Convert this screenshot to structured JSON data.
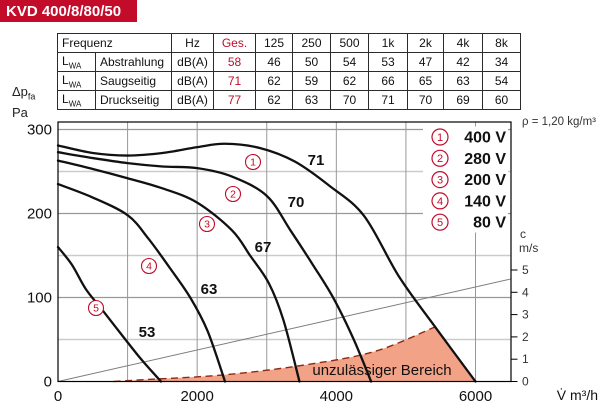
{
  "title": "KVD 400/8/80/50",
  "colors": {
    "accent_red": "#c30b2a",
    "region_fill": "#f2a387",
    "region_dash": "#8d2a12",
    "curve": "#111111",
    "grid_major": "#989898",
    "grid_minor": "#cbcbcb",
    "velocity_line": "#7d7d7d"
  },
  "table": {
    "header": {
      "frequency": "Frequenz",
      "hz": "Hz",
      "total": "Ges.",
      "bands": [
        "125",
        "250",
        "500",
        "1k",
        "2k",
        "4k",
        "8k"
      ]
    },
    "rows": [
      {
        "symbol": "L",
        "symbol_sub": "WA",
        "name": "Abstrahlung",
        "unit": "dB(A)",
        "total": "58",
        "values": [
          "46",
          "50",
          "54",
          "53",
          "47",
          "42",
          "34"
        ]
      },
      {
        "symbol": "L",
        "symbol_sub": "WA",
        "name": "Saugseitig",
        "unit": "dB(A)",
        "total": "71",
        "values": [
          "62",
          "59",
          "62",
          "66",
          "65",
          "63",
          "54"
        ]
      },
      {
        "symbol": "L",
        "symbol_sub": "WA",
        "name": "Druckseitig",
        "unit": "dB(A)",
        "total": "77",
        "values": [
          "62",
          "63",
          "70",
          "71",
          "70",
          "69",
          "60"
        ]
      }
    ]
  },
  "y_axis": {
    "label_main": "Δp",
    "label_sub": "fa",
    "label_unit": "Pa",
    "ticks": [
      "300",
      "200",
      "100",
      "0"
    ],
    "tick_values": [
      300,
      200,
      100,
      0
    ]
  },
  "x_axis": {
    "label": "V̇ m³/h",
    "ticks": [
      "0",
      "2000",
      "4000",
      "6000"
    ],
    "tick_values": [
      0,
      2000,
      4000,
      6000
    ]
  },
  "c_axis": {
    "name": "c",
    "unit": "m/s",
    "tick_values": [
      0,
      1,
      2,
      3,
      4,
      5
    ]
  },
  "rho_note": "ρ = 1,20 kg/m³",
  "chart_data": {
    "type": "line",
    "xlabel": "V̇ m³/h",
    "ylabel": "Δp_fa Pa",
    "y2label": "c m/s",
    "xlim": [
      0,
      6550
    ],
    "ylim": [
      0,
      308
    ],
    "y2lim": [
      0,
      5.1
    ],
    "x_grid_step_m3h": 1000,
    "y_major_grid": [
      100,
      200,
      300
    ],
    "y_minor_grid": [
      50,
      150,
      250
    ],
    "legend_position": "top-right-inside",
    "series": [
      {
        "number": "1",
        "voltage": "400 V",
        "sound_power": "71",
        "points": [
          [
            0,
            281
          ],
          [
            500,
            272
          ],
          [
            1000,
            269
          ],
          [
            1500,
            272
          ],
          [
            2000,
            279
          ],
          [
            2400,
            283
          ],
          [
            2900,
            278
          ],
          [
            3400,
            262
          ],
          [
            3900,
            233
          ],
          [
            4400,
            197
          ],
          [
            4900,
            125
          ],
          [
            5420,
            65
          ],
          [
            6000,
            0
          ]
        ]
      },
      {
        "number": "2",
        "voltage": "280 V",
        "sound_power": "70",
        "points": [
          [
            0,
            273
          ],
          [
            500,
            266
          ],
          [
            1000,
            260
          ],
          [
            1500,
            256
          ],
          [
            2000,
            254
          ],
          [
            2500,
            244
          ],
          [
            3000,
            221
          ],
          [
            3340,
            180
          ],
          [
            3670,
            138
          ],
          [
            3960,
            99
          ],
          [
            4250,
            50
          ],
          [
            4500,
            0
          ]
        ]
      },
      {
        "number": "3",
        "voltage": "200 V",
        "sound_power": "67",
        "points": [
          [
            0,
            263
          ],
          [
            500,
            253
          ],
          [
            1000,
            242
          ],
          [
            1500,
            230
          ],
          [
            2000,
            213
          ],
          [
            2500,
            180
          ],
          [
            2760,
            150
          ],
          [
            3030,
            117
          ],
          [
            3240,
            73
          ],
          [
            3470,
            0
          ]
        ]
      },
      {
        "number": "4",
        "voltage": "140 V",
        "sound_power": "63",
        "points": [
          [
            0,
            235
          ],
          [
            500,
            219
          ],
          [
            1000,
            198
          ],
          [
            1300,
            170
          ],
          [
            1600,
            136
          ],
          [
            1900,
            100
          ],
          [
            2150,
            60
          ],
          [
            2400,
            0
          ]
        ]
      },
      {
        "number": "5",
        "voltage": "80 V",
        "sound_power": "53",
        "points": [
          [
            0,
            160
          ],
          [
            200,
            139
          ],
          [
            400,
            110
          ],
          [
            620,
            87
          ],
          [
            940,
            53
          ],
          [
            1200,
            26
          ],
          [
            1480,
            0
          ]
        ]
      }
    ],
    "velocity_line": {
      "from_m3h_c": [
        0,
        0
      ],
      "to_right_edge_c": 4.6
    },
    "forbidden_region": {
      "label": "unzulässiger Bereich",
      "top_boundary_points": [
        [
          800,
          0
        ],
        [
          1200,
          2
        ],
        [
          2400,
          8
        ],
        [
          3570,
          20
        ],
        [
          4560,
          36
        ],
        [
          5420,
          65
        ]
      ],
      "right_boundary_points": [
        [
          5600,
          46
        ],
        [
          5800,
          23
        ],
        [
          5980,
          0
        ]
      ]
    }
  }
}
